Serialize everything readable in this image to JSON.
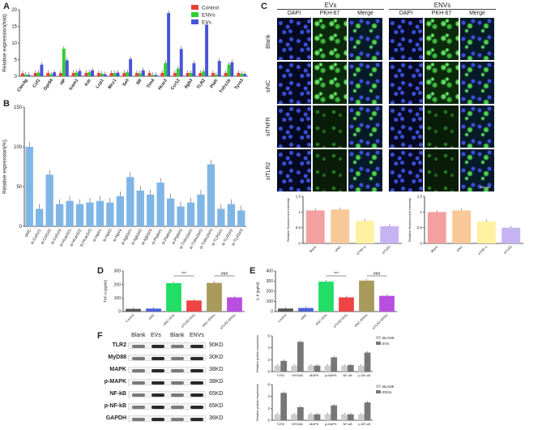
{
  "panels": {
    "A": "A",
    "B": "B",
    "C": "C",
    "D": "D",
    "E": "E",
    "F": "F"
  },
  "chart_data": [
    {
      "id": "A",
      "type": "bar",
      "ylabel": "Relative expression(fold)",
      "ylim": [
        0,
        20
      ],
      "yticks": [
        0,
        5,
        10,
        15,
        20
      ],
      "categories": [
        "Clec4g",
        "Csf1",
        "Gpr84",
        "HP",
        "Icam1",
        "Kdr",
        "Lcp1",
        "Mcc1",
        "Sell",
        "SR",
        "Tim4",
        "Hcar2",
        "Ccr12",
        "Itgb3",
        "TLR2",
        "Ptafr",
        "Tnfrs1b",
        "Tyro3"
      ],
      "series": [
        {
          "name": "Control",
          "color": "#e8403a",
          "values": [
            0.9,
            1.0,
            1.0,
            1.0,
            1.0,
            1.0,
            1.0,
            1.0,
            1.0,
            1.0,
            1.0,
            1.0,
            1.0,
            1.0,
            1.0,
            1.0,
            1.0,
            1.0
          ]
        },
        {
          "name": "ENVs",
          "color": "#2fcf2f",
          "values": [
            0.5,
            1.1,
            0.6,
            8.3,
            1.1,
            1.2,
            0.8,
            0.9,
            1.2,
            0.9,
            0.4,
            4.0,
            2.3,
            1.0,
            1.5,
            0.5,
            3.5,
            0.8
          ]
        },
        {
          "name": "EVs",
          "color": "#4b52d9",
          "values": [
            0.4,
            3.5,
            1.2,
            4.8,
            1.6,
            1.8,
            0.6,
            1.1,
            5.2,
            1.8,
            0.4,
            19.0,
            8.2,
            3.9,
            15.5,
            4.6,
            4.2,
            0.7
          ]
        }
      ],
      "legend_position": "top-right"
    },
    {
      "id": "B",
      "type": "bar",
      "ylabel": "Relative expression(%)",
      "ylim": [
        0,
        150
      ],
      "yticks": [
        0,
        50,
        100,
        150
      ],
      "categories": [
        "siNC",
        "si-Csf1#1",
        "si-Csf1#2",
        "si-Csf1#3",
        "si-Hcar2#1",
        "si-Hcar2#2",
        "si-Hcar2#3",
        "si-Hp#1",
        "si-Hp#2",
        "si-Hp#3",
        "si-Itgb3#1",
        "si-Itgb3#2",
        "si-Itgb3#3",
        "si-Ptafr#1",
        "si-Ptafr#2",
        "si-Ptafr#3",
        "si-Tnfrs1b#1",
        "si-Tnfrs1b#2",
        "si-Tnfrs1b#3",
        "si-TLR2#1",
        "si-TLR2#2",
        "si-TLR2#3"
      ],
      "values": [
        100,
        22,
        65,
        28,
        32,
        28,
        30,
        32,
        30,
        38,
        62,
        45,
        40,
        55,
        35,
        25,
        30,
        40,
        78,
        22,
        28,
        20
      ],
      "bar_color": "#7fb6e6"
    },
    {
      "id": "C-left",
      "type": "bar",
      "ylabel": "Relative fluorescence intensity",
      "ylim": [
        0,
        1.5
      ],
      "yticks": [
        0,
        0.5,
        1.0,
        1.5
      ],
      "categories": [
        "Blank",
        "siNC",
        "siTNF-α",
        "siTLR2"
      ],
      "values": [
        1.05,
        1.08,
        0.72,
        0.55
      ],
      "colors": [
        "#f4a0a0",
        "#f9c899",
        "#fff1a0",
        "#c6b3f2"
      ]
    },
    {
      "id": "C-right",
      "type": "bar",
      "ylabel": "Relative fluorescence intensity",
      "ylim": [
        0,
        1.5
      ],
      "yticks": [
        0,
        0.5,
        1.0,
        1.5
      ],
      "categories": [
        "Blank",
        "siNC",
        "siTNF-α",
        "siTLR2"
      ],
      "values": [
        1.0,
        1.05,
        0.7,
        0.5
      ],
      "colors": [
        "#f4a0a0",
        "#f9c899",
        "#fff1a0",
        "#c6b3f2"
      ]
    },
    {
      "id": "D",
      "type": "bar",
      "ylabel": "TNF-α (pg/ml)",
      "ylim": [
        0,
        300
      ],
      "yticks": [
        0,
        100,
        200,
        300
      ],
      "categories": [
        "Control",
        "siNC",
        "siNC+EVs",
        "siTLR2+EVs",
        "siNC+ENVs",
        "siTLR2+ENVs"
      ],
      "values": [
        20,
        22,
        210,
        82,
        212,
        105
      ],
      "colors": [
        "#555555",
        "#4b62d9",
        "#22dd66",
        "#ee4444",
        "#a89a5a",
        "#b84fe0"
      ]
    },
    {
      "id": "E",
      "type": "bar",
      "ylabel": "IL-6 (pg/ml)",
      "ylim": [
        0,
        400
      ],
      "yticks": [
        0,
        100,
        200,
        300,
        400
      ],
      "categories": [
        "Control",
        "siNC",
        "siNC+EVs",
        "siTLR2+EVs",
        "siNC+ENVs",
        "siTLR2+ENVs"
      ],
      "values": [
        30,
        35,
        295,
        140,
        305,
        155
      ],
      "colors": [
        "#555555",
        "#4b62d9",
        "#22dd66",
        "#ee4444",
        "#a89a5a",
        "#b84fe0"
      ]
    },
    {
      "id": "F-top",
      "type": "bar",
      "ylabel": "Relative protein expression",
      "ylim": [
        0,
        6
      ],
      "yticks": [
        0,
        2,
        4,
        6
      ],
      "categories": [
        "TLR2",
        "MYD88",
        "MAPK",
        "p-MAPK",
        "NF-κB",
        "p-NF-κB"
      ],
      "series": [
        {
          "name": "BLANK",
          "color": "#cccccc",
          "values": [
            1.0,
            1.0,
            1.0,
            1.0,
            1.0,
            1.0
          ]
        },
        {
          "name": "EVs",
          "color": "#777777",
          "values": [
            1.8,
            5.0,
            1.0,
            2.4,
            1.1,
            3.2
          ]
        }
      ],
      "legend_position": "top-right"
    },
    {
      "id": "F-bottom",
      "type": "bar",
      "ylabel": "Relative protein expression",
      "ylim": [
        0,
        6
      ],
      "yticks": [
        0,
        2,
        4,
        6
      ],
      "categories": [
        "TLR2",
        "MYD88",
        "MAPK",
        "p-MAPK",
        "NF-κB",
        "p-NF-κB"
      ],
      "series": [
        {
          "name": "BLANK",
          "color": "#cccccc",
          "values": [
            1.0,
            1.0,
            1.0,
            1.0,
            1.0,
            1.0
          ]
        },
        {
          "name": "ENVs",
          "color": "#777777",
          "values": [
            4.6,
            2.2,
            1.0,
            2.5,
            1.0,
            3.0
          ]
        }
      ],
      "legend_position": "top-right"
    }
  ],
  "microscopy": {
    "groups": [
      "EVs",
      "ENVs"
    ],
    "channels": [
      "DAPI",
      "PKH-67",
      "Merge"
    ],
    "rows": [
      "Blank",
      "siNC",
      "siTNFR",
      "siTLR2"
    ],
    "scale_bar": "100 μm"
  },
  "western": {
    "columns": [
      "Blank",
      "EVs",
      "Blank",
      "ENVs"
    ],
    "rows": [
      {
        "label": "TLR2",
        "kd": "90KD"
      },
      {
        "label": "MyD88",
        "kd": "30KD"
      },
      {
        "label": "MAPK",
        "kd": "38KD"
      },
      {
        "label": "p-MAPK",
        "kd": "38KD"
      },
      {
        "label": "NF-kB",
        "kd": "65KD"
      },
      {
        "label": "p-NF-kB",
        "kd": "65KD"
      },
      {
        "label": "GAPDH",
        "kd": "36KD"
      }
    ]
  },
  "significance": {
    "s3": "***",
    "h3": "###"
  }
}
